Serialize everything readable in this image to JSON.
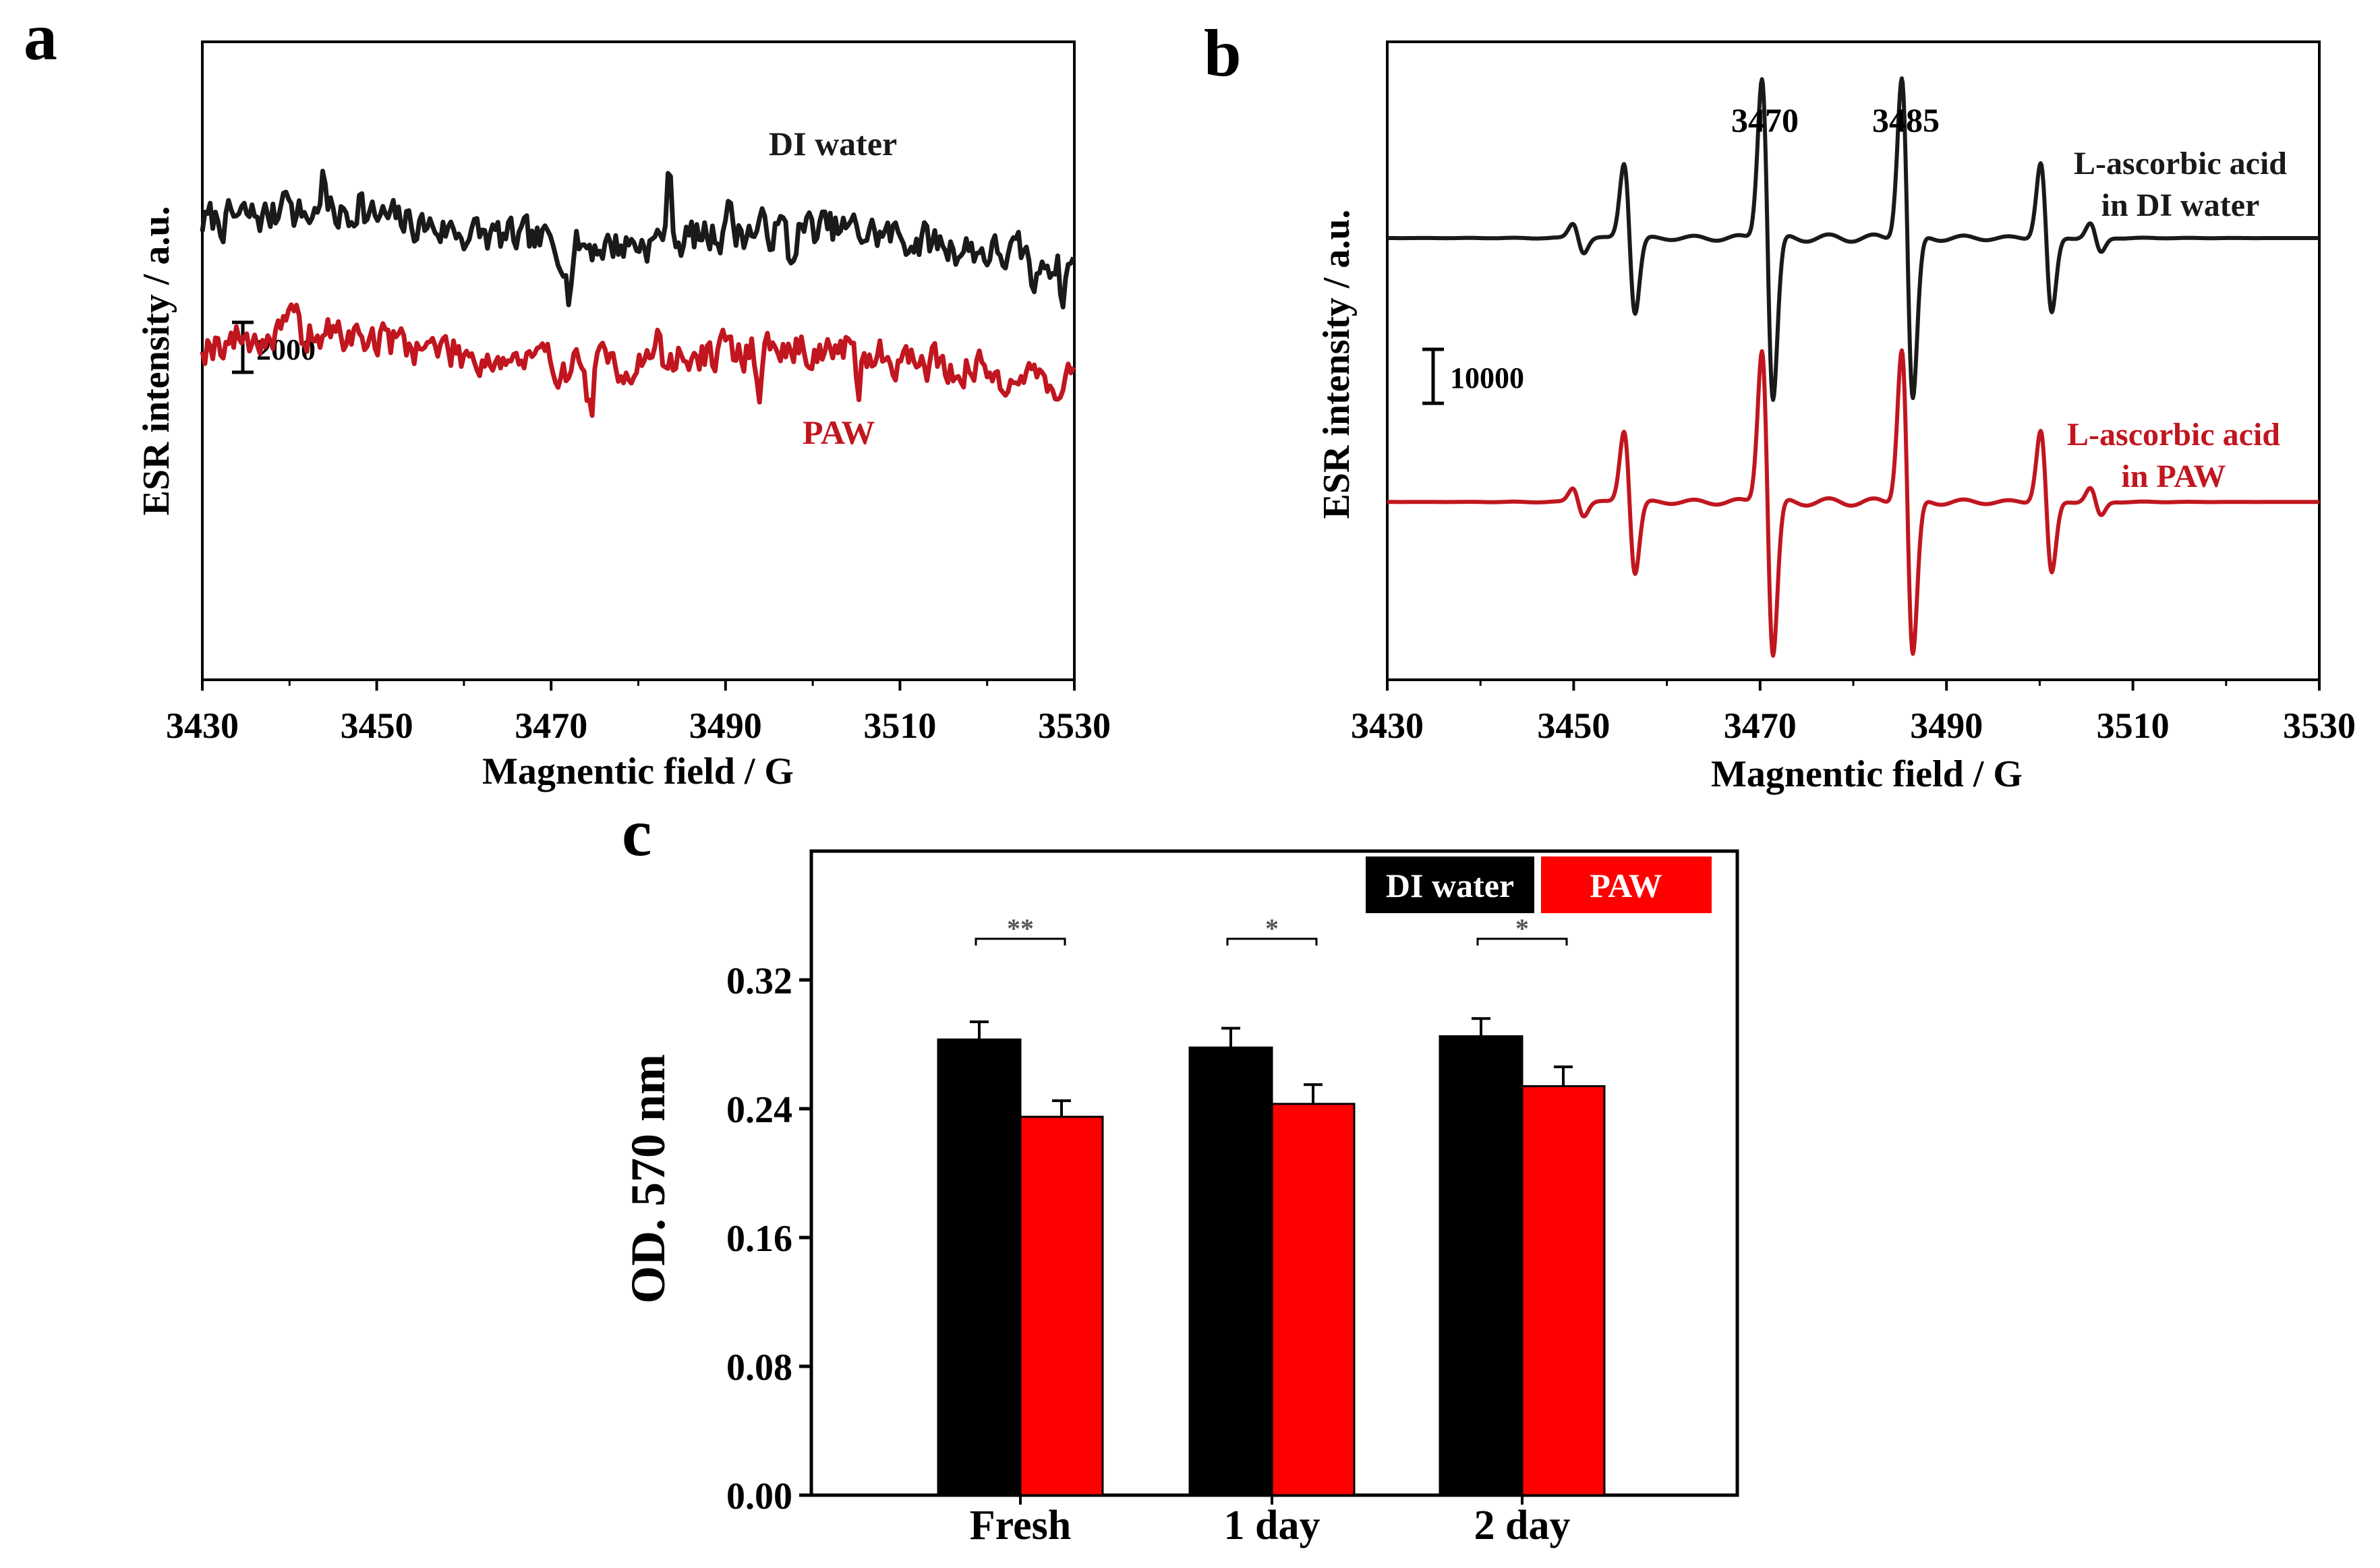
{
  "colors": {
    "black_series": "#1a1a1a",
    "red_series": "#c1161f",
    "bar_black": "#000000",
    "bar_red": "#ff0000"
  },
  "chart_data": [
    {
      "panel": "a",
      "type": "line",
      "xlabel": "Magnentic field / G",
      "ylabel": "ESR intensity / a.u.",
      "xlim": [
        3430,
        3530
      ],
      "xticks": [
        3430,
        3450,
        3470,
        3490,
        3510,
        3530
      ],
      "scale_bar_label": "2000",
      "series": [
        {
          "name": "DI water",
          "color": "#1a1a1a",
          "shape": "noise",
          "seed": 7,
          "noise_amplitude": 2200,
          "offset": 0,
          "spikes": [
            [
              3439.5,
              3200
            ],
            [
              3443.8,
              2600
            ],
            [
              3448,
              1800
            ],
            [
              3472,
              -3200
            ],
            [
              3483.5,
              4200
            ],
            [
              3490.2,
              2400
            ],
            [
              3497.5,
              -2600
            ],
            [
              3525.5,
              -2800
            ],
            [
              3528.7,
              -2500
            ]
          ]
        },
        {
          "name": "PAW",
          "color": "#c1161f",
          "shape": "noise",
          "seed": 19,
          "noise_amplitude": 2200,
          "offset": -8500,
          "spikes": [
            [
              3440.5,
              2200
            ],
            [
              3474.5,
              -3200
            ],
            [
              3482,
              1800
            ],
            [
              3494,
              -2000
            ],
            [
              3505.2,
              -3000
            ]
          ]
        }
      ],
      "annotations": [
        {
          "text": "DI water",
          "color": "#1a1a1a"
        },
        {
          "text": "PAW",
          "color": "#c1161f"
        }
      ]
    },
    {
      "panel": "b",
      "type": "line",
      "xlabel": "Magnentic field / G",
      "ylabel": "ESR intensity / a.u.",
      "xlim": [
        3430,
        3530
      ],
      "xticks": [
        3430,
        3450,
        3470,
        3490,
        3510,
        3530
      ],
      "scale_bar_label": "10000",
      "peak_labels": [
        "3470",
        "3485"
      ],
      "series": [
        {
          "name": "L-ascorbic acid in DI water",
          "color": "#1a1a1a",
          "shape": "esr_quartet",
          "offset": 0,
          "scale": 1.0
        },
        {
          "name": "L-ascorbic acid in PAW",
          "color": "#c1161f",
          "shape": "esr_quartet",
          "offset": -43000,
          "scale": 0.95
        }
      ],
      "esr_lines": [
        {
          "center": 3450.5,
          "amplitude": 2500
        },
        {
          "center": 3456.0,
          "amplitude": 13000
        },
        {
          "center": 3470.8,
          "amplitude": 28000
        },
        {
          "center": 3485.8,
          "amplitude": 28000
        },
        {
          "center": 3500.7,
          "amplitude": 13000
        },
        {
          "center": 3506.0,
          "amplitude": 2500
        }
      ],
      "annotations": [
        {
          "lines": [
            "L-ascorbic acid",
            "in DI water"
          ],
          "color": "#1a1a1a"
        },
        {
          "lines": [
            "L-ascorbic acid",
            "in PAW"
          ],
          "color": "#c1161f"
        }
      ]
    },
    {
      "panel": "c",
      "type": "bar",
      "ylabel": "OD. 570 nm",
      "ylim": [
        0.0,
        0.4
      ],
      "yticks": [
        "0.00",
        "0.08",
        "0.16",
        "0.24",
        "0.32"
      ],
      "categories": [
        "Fresh",
        "1 day",
        "2 day"
      ],
      "series": [
        {
          "name": "DI water",
          "color": "#000000",
          "values": [
            0.283,
            0.278,
            0.285
          ],
          "errors": [
            0.011,
            0.012,
            0.011
          ]
        },
        {
          "name": "PAW",
          "color": "#ff0000",
          "values": [
            0.235,
            0.243,
            0.254
          ],
          "errors": [
            0.01,
            0.012,
            0.012
          ]
        }
      ],
      "significance": [
        "**",
        "*",
        "*"
      ],
      "legend": [
        "DI water",
        "PAW"
      ]
    }
  ]
}
